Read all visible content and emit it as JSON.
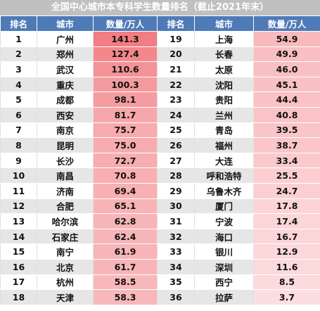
{
  "title": "全国中心城市本专科学生数量排名（截止2021年末）",
  "headers": [
    "排名",
    "城市",
    "数量/万人",
    "排名",
    "城市",
    "数量/万人"
  ],
  "colors": {
    "header_bg": "#4f7ab8",
    "title_bg": "#c0c0c0",
    "bar_high": "#f27d82",
    "bar_low": "#fde1e3"
  },
  "rows": [
    {
      "l_rank": "1",
      "l_city": "广州",
      "l_val": "141.3",
      "r_rank": "19",
      "r_city": "上海",
      "r_val": "54.9"
    },
    {
      "l_rank": "2",
      "l_city": "郑州",
      "l_val": "127.4",
      "r_rank": "20",
      "r_city": "长春",
      "r_val": "49.9"
    },
    {
      "l_rank": "3",
      "l_city": "武汉",
      "l_val": "110.6",
      "r_rank": "21",
      "r_city": "太原",
      "r_val": "46.0"
    },
    {
      "l_rank": "4",
      "l_city": "重庆",
      "l_val": "100.3",
      "r_rank": "22",
      "r_city": "沈阳",
      "r_val": "45.1"
    },
    {
      "l_rank": "5",
      "l_city": "成都",
      "l_val": "98.1",
      "r_rank": "23",
      "r_city": "贵阳",
      "r_val": "44.4"
    },
    {
      "l_rank": "6",
      "l_city": "西安",
      "l_val": "81.7",
      "r_rank": "24",
      "r_city": "兰州",
      "r_val": "40.8"
    },
    {
      "l_rank": "7",
      "l_city": "南京",
      "l_val": "75.7",
      "r_rank": "25",
      "r_city": "青岛",
      "r_val": "39.5"
    },
    {
      "l_rank": "8",
      "l_city": "昆明",
      "l_val": "75.0",
      "r_rank": "26",
      "r_city": "福州",
      "r_val": "38.7"
    },
    {
      "l_rank": "9",
      "l_city": "长沙",
      "l_val": "72.7",
      "r_rank": "27",
      "r_city": "大连",
      "r_val": "33.4"
    },
    {
      "l_rank": "10",
      "l_city": "南昌",
      "l_val": "70.8",
      "r_rank": "28",
      "r_city": "呼和浩特",
      "r_val": "25.5"
    },
    {
      "l_rank": "11",
      "l_city": "济南",
      "l_val": "69.4",
      "r_rank": "29",
      "r_city": "乌鲁木齐",
      "r_val": "24.7"
    },
    {
      "l_rank": "12",
      "l_city": "合肥",
      "l_val": "65.1",
      "r_rank": "30",
      "r_city": "厦门",
      "r_val": "17.8"
    },
    {
      "l_rank": "13",
      "l_city": "哈尔滨",
      "l_val": "62.8",
      "r_rank": "31",
      "r_city": "宁波",
      "r_val": "17.4"
    },
    {
      "l_rank": "14",
      "l_city": "石家庄",
      "l_val": "62.4",
      "r_rank": "32",
      "r_city": "海口",
      "r_val": "16.7"
    },
    {
      "l_rank": "15",
      "l_city": "南宁",
      "l_val": "61.9",
      "r_rank": "33",
      "r_city": "银川",
      "r_val": "12.9"
    },
    {
      "l_rank": "16",
      "l_city": "北京",
      "l_val": "61.7",
      "r_rank": "34",
      "r_city": "深圳",
      "r_val": "11.6"
    },
    {
      "l_rank": "17",
      "l_city": "杭州",
      "l_val": "58.5",
      "r_rank": "35",
      "r_city": "西宁",
      "r_val": "8.5"
    },
    {
      "l_rank": "18",
      "l_city": "天津",
      "l_val": "58.3",
      "r_rank": "36",
      "r_city": "拉萨",
      "r_val": "3.7"
    }
  ]
}
